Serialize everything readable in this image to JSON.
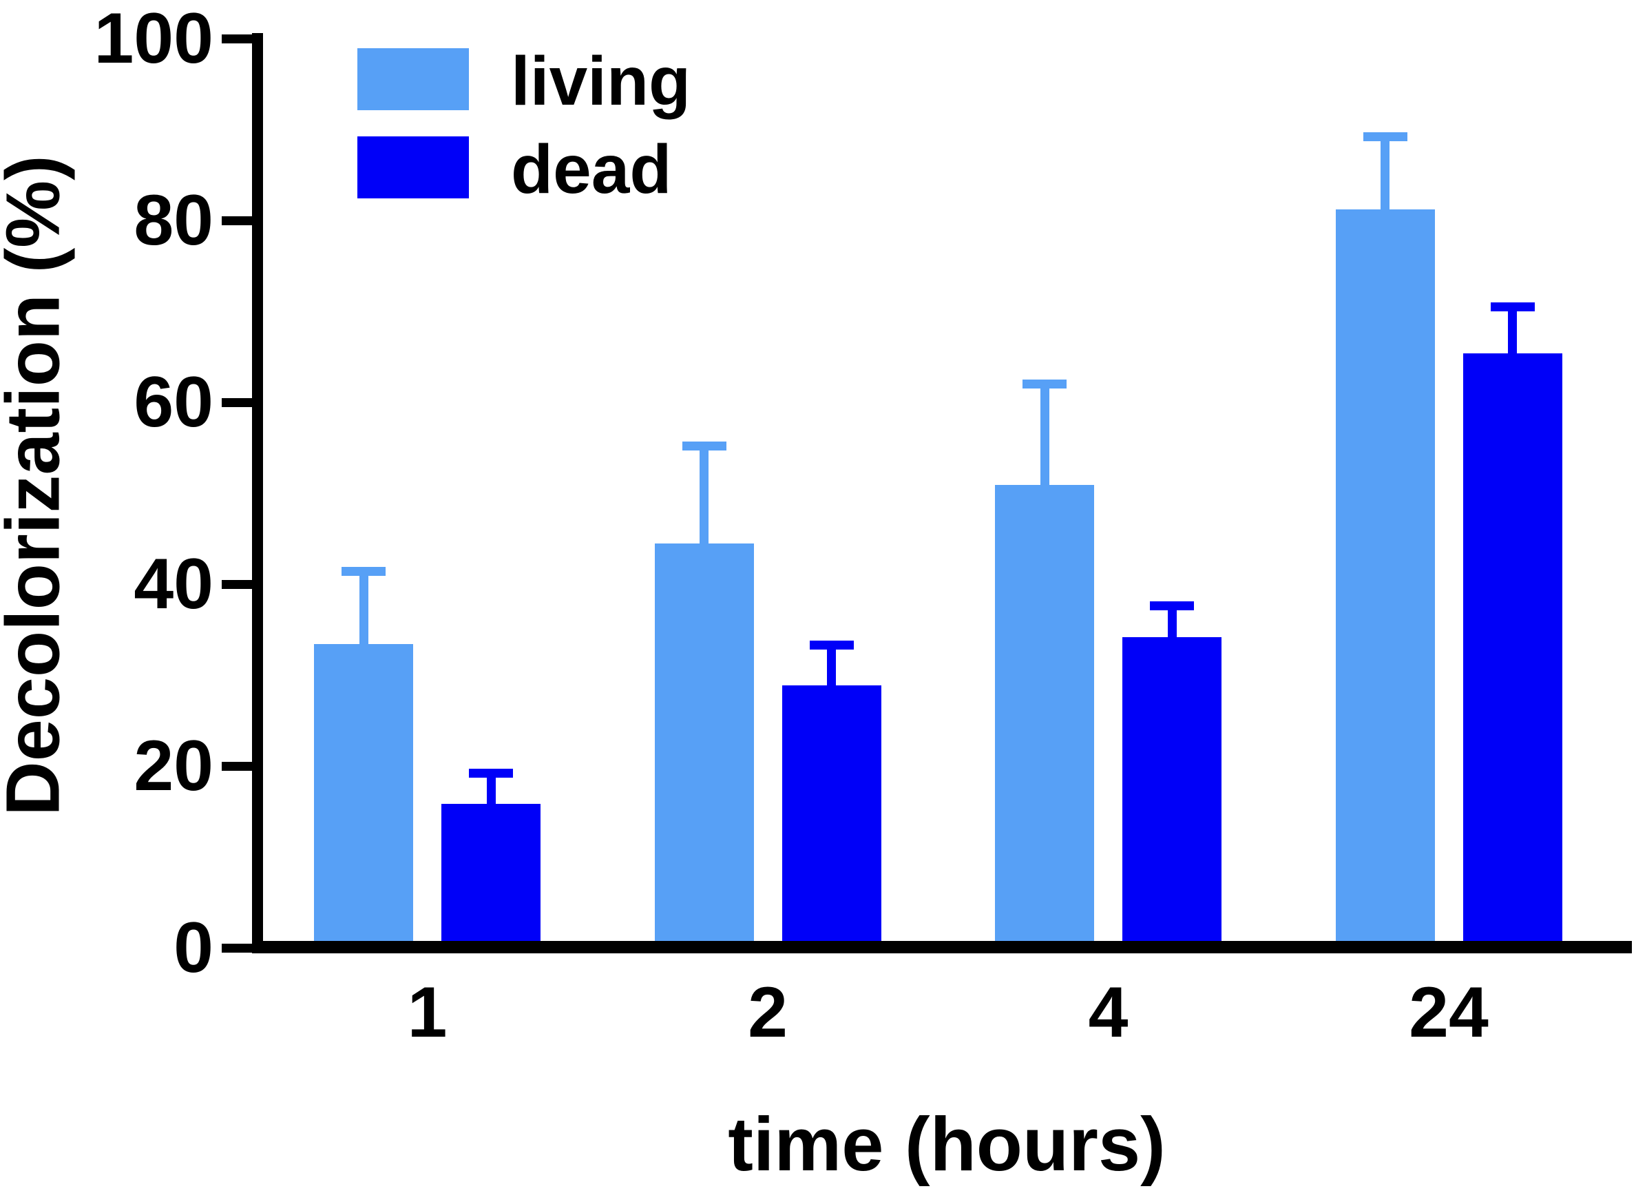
{
  "chart_data": {
    "type": "bar",
    "categories": [
      "1",
      "2",
      "4",
      "24"
    ],
    "series": [
      {
        "name": "living",
        "color": "#57A0F6",
        "values": [
          33.4,
          44.5,
          50.9,
          81.2
        ],
        "errors_plus": [
          8.0,
          10.7,
          11.1,
          8.0
        ]
      },
      {
        "name": "dead",
        "color": "#0000F8",
        "values": [
          15.8,
          28.9,
          34.2,
          65.4
        ],
        "errors_plus": [
          3.4,
          4.4,
          3.4,
          5.1
        ]
      }
    ],
    "title": "",
    "xlabel": "time (hours)",
    "ylabel": "Decolorization (%)",
    "ylim": [
      0,
      100
    ],
    "yticks": [
      0,
      20,
      40,
      60,
      80,
      100
    ],
    "grid": false,
    "legend_position": "top-left-inside",
    "error_bars": "upper-only",
    "axis_color": "#000000",
    "background_color": "#FFFFFF"
  }
}
